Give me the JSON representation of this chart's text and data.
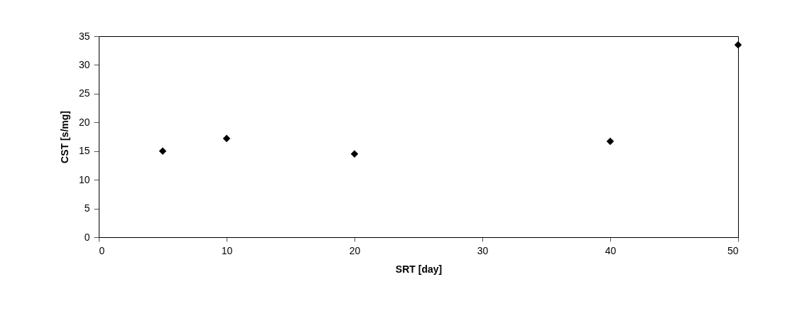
{
  "chart_data": {
    "type": "scatter",
    "xlabel": "SRT [day]",
    "ylabel": "CST [s/mg]",
    "x": [
      5,
      10,
      20,
      40,
      50
    ],
    "series": [
      {
        "color": "#000000",
        "values": [
          15,
          17.2,
          14.5,
          16.7,
          33.5
        ]
      }
    ],
    "xlim": [
      0,
      50
    ],
    "xticks": [
      0,
      10,
      20,
      30,
      40,
      50
    ],
    "ylim": [
      0,
      35
    ],
    "yticks": [
      0,
      5,
      10,
      15,
      20,
      25,
      30,
      35
    ],
    "marker": "diamond",
    "grid": false
  }
}
